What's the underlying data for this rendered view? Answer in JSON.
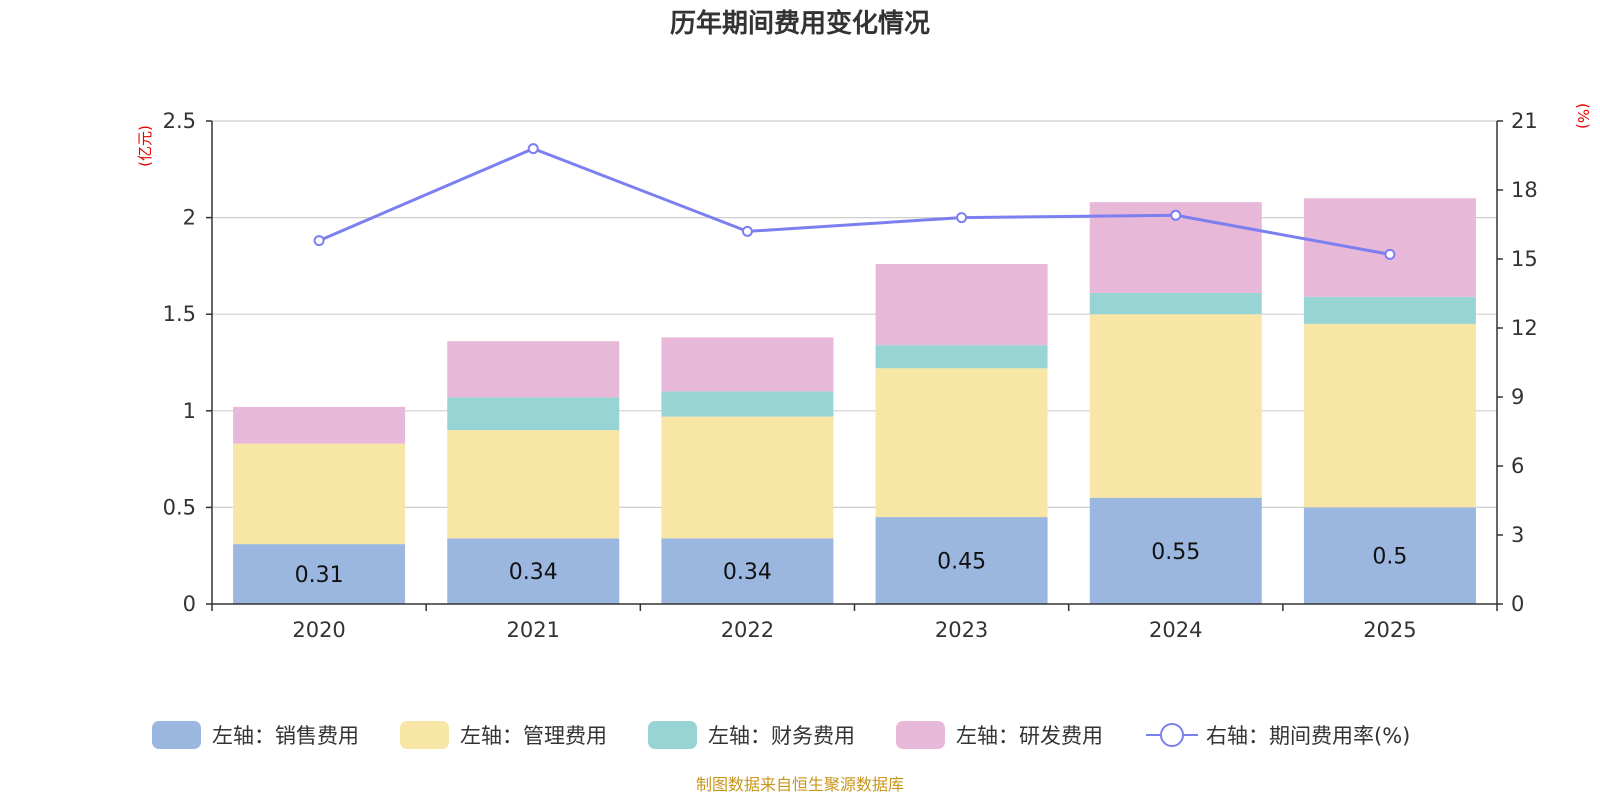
{
  "chart_data": {
    "type": "bar",
    "stacked": true,
    "title": "历年期间费用变化情况",
    "categories": [
      "2020",
      "2021",
      "2022",
      "2023",
      "2024",
      "2025"
    ],
    "left_axis": {
      "unit": "(亿元)",
      "range": [
        0,
        2.5
      ],
      "ticks": [
        "0",
        "0.5",
        "1",
        "1.5",
        "2",
        "2.5"
      ],
      "tick_values": [
        0,
        0.5,
        1,
        1.5,
        2,
        2.5
      ]
    },
    "right_axis": {
      "unit": "(%)",
      "range": [
        0,
        21
      ],
      "ticks": [
        "0",
        "3",
        "6",
        "9",
        "12",
        "15",
        "18",
        "21"
      ],
      "tick_values": [
        0,
        3,
        6,
        9,
        12,
        15,
        18,
        21
      ]
    },
    "series": [
      {
        "name": "左轴：销售费用",
        "axis": "left",
        "type": "bar",
        "color": "#9bb7e0",
        "values": [
          0.31,
          0.34,
          0.34,
          0.45,
          0.55,
          0.5
        ],
        "labels": [
          "0.31",
          "0.34",
          "0.34",
          "0.45",
          "0.55",
          "0.5"
        ]
      },
      {
        "name": "左轴：管理费用",
        "axis": "left",
        "type": "bar",
        "color": "#f8e6a6",
        "values": [
          0.52,
          0.56,
          0.63,
          0.77,
          0.95,
          0.95
        ]
      },
      {
        "name": "左轴：财务费用",
        "axis": "left",
        "type": "bar",
        "color": "#98d4d4",
        "values": [
          0.0,
          0.17,
          0.13,
          0.12,
          0.11,
          0.14
        ]
      },
      {
        "name": "左轴：研发费用",
        "axis": "left",
        "type": "bar",
        "color": "#e8b8d8",
        "values": [
          0.19,
          0.29,
          0.28,
          0.42,
          0.47,
          0.51
        ]
      },
      {
        "name": "右轴：期间费用率(%)",
        "axis": "right",
        "type": "line",
        "color": "#7b7ff0",
        "values": [
          15.8,
          19.8,
          16.2,
          16.8,
          16.9,
          15.2
        ]
      }
    ],
    "grid": true,
    "legend_position": "bottom"
  },
  "source_note": "制图数据来自恒生聚源数据库"
}
